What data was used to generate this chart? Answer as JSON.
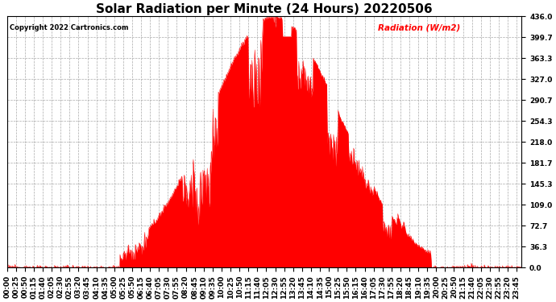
{
  "title": "Solar Radiation per Minute (24 Hours) 20220506",
  "copyright_text": "Copyright 2022 Cartronics.com",
  "legend_label": "Radiation (W/m2)",
  "background_color": "#ffffff",
  "plot_bg_color": "#ffffff",
  "fill_color": "#ff0000",
  "line_color": "#ff0000",
  "grid_color": "#aaaaaa",
  "yticks": [
    0.0,
    36.3,
    72.7,
    109.0,
    145.3,
    181.7,
    218.0,
    254.3,
    290.7,
    327.0,
    363.3,
    399.7,
    436.0
  ],
  "ymax": 436.0,
  "ymin": 0.0,
  "title_fontsize": 11,
  "axis_fontsize": 6.5,
  "n_minutes": 1440,
  "tick_interval": 25,
  "sunrise_min": 315,
  "sunset_min": 1185,
  "peak_min": 745,
  "peak_val": 436.0
}
